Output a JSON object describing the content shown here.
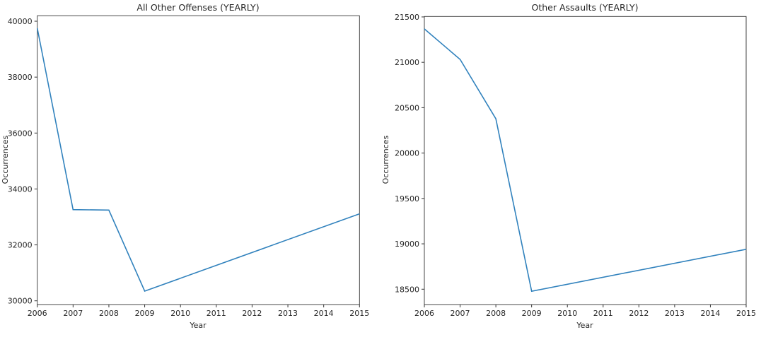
{
  "chart_data": [
    {
      "type": "line",
      "title": "All Other Offenses (YEARLY)",
      "xlabel": "Year",
      "ylabel": "Occurrences",
      "x": [
        2006,
        2007,
        2008,
        2009,
        2015
      ],
      "series": [
        {
          "values": [
            39750,
            33260,
            33245,
            30345,
            33110
          ],
          "color": "#3182bd"
        }
      ],
      "xlim": [
        2006,
        2015
      ],
      "ylim": [
        29866,
        40195
      ],
      "xticks": [
        "2006",
        "2007",
        "2008",
        "2009",
        "2010",
        "2011",
        "2012",
        "2013",
        "2014",
        "2015"
      ],
      "yticks": [
        "30000",
        "32000",
        "34000",
        "36000",
        "38000",
        "40000"
      ],
      "grid": false
    },
    {
      "type": "line",
      "title": "Other Assaults (YEARLY)",
      "xlabel": "Year",
      "ylabel": "Occurrences",
      "x": [
        2006,
        2007,
        2008,
        2009,
        2015
      ],
      "series": [
        {
          "values": [
            21368,
            21032,
            20378,
            18477,
            18940
          ],
          "color": "#3182bd"
        }
      ],
      "xlim": [
        2006,
        2015
      ],
      "ylim": [
        18331,
        21505
      ],
      "xticks": [
        "2006",
        "2007",
        "2008",
        "2009",
        "2010",
        "2011",
        "2012",
        "2013",
        "2014",
        "2015"
      ],
      "yticks": [
        "18500",
        "19000",
        "19500",
        "20000",
        "20500",
        "21000",
        "21500"
      ],
      "grid": false
    }
  ]
}
